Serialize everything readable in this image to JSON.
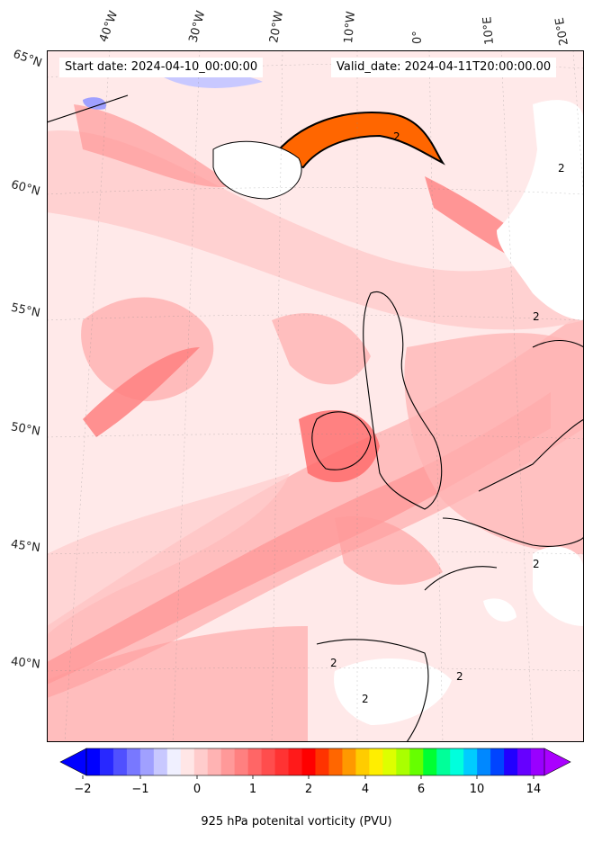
{
  "header": {
    "start_date": "Start date: 2024-04-10_00:00:00",
    "valid_date": "Valid_date: 2024-04-11T20:00:00.00"
  },
  "lon_labels": [
    "40°W",
    "30°W",
    "20°W",
    "10°W",
    "0°",
    "10°E",
    "20°E"
  ],
  "lat_labels": [
    "65°N",
    "60°N",
    "55°N",
    "50°N",
    "45°N",
    "40°N"
  ],
  "colorbar": {
    "label": "925 hPa potenital vorticity (PVU)",
    "tick_labels": [
      "−2",
      "−1",
      "0",
      "1",
      "2",
      "4",
      "6",
      "10",
      "14"
    ],
    "colors": [
      "#0000ff",
      "#2828ff",
      "#5050ff",
      "#7878ff",
      "#a0a0ff",
      "#c8c8ff",
      "#f0f0ff",
      "#ffe6e6",
      "#ffcccc",
      "#ffb3b3",
      "#ff9999",
      "#ff8080",
      "#ff6666",
      "#ff4d4d",
      "#ff3333",
      "#ff1a1a",
      "#ff0000",
      "#ff3300",
      "#ff6600",
      "#ff9900",
      "#ffcc00",
      "#ffee00",
      "#ddff00",
      "#aaff00",
      "#66ff00",
      "#00ff33",
      "#00ff99",
      "#00ffdd",
      "#00ccff",
      "#0088ff",
      "#0044ff",
      "#2200ff",
      "#6600ff",
      "#9900ff"
    ],
    "extend_min_color": "#0000ff",
    "extend_max_color": "#aa00ff"
  },
  "colors": {
    "land_mask": "#ffffff",
    "coast": "#000000",
    "background_field": "#ffe6e6"
  },
  "contour_labels": [
    "2",
    "2",
    "2",
    "2",
    "2",
    "2",
    "2"
  ]
}
